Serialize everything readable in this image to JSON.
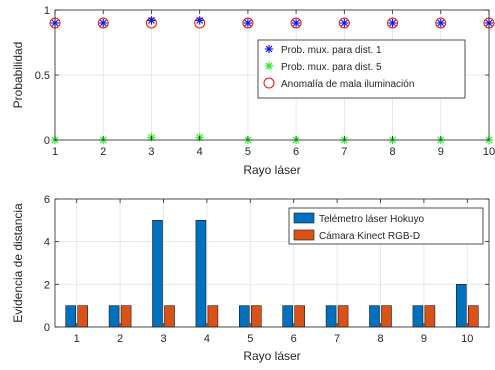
{
  "chart_data": [
    {
      "type": "scatter",
      "xlabel": "Rayo láser",
      "ylabel": "Probabilidad",
      "xlim": [
        1,
        10
      ],
      "ylim": [
        0,
        1
      ],
      "x": [
        1,
        2,
        3,
        4,
        5,
        6,
        7,
        8,
        9,
        10
      ],
      "xticks": [
        "1",
        "2",
        "3",
        "4",
        "5",
        "6",
        "7",
        "8",
        "9",
        "10"
      ],
      "yticks": [
        "0",
        "0.5",
        "1"
      ],
      "yticks_values": [
        0,
        0.5,
        1
      ],
      "grid": true,
      "legend_position": "inside right",
      "series": [
        {
          "name": "Prob. mux. para dist. 1",
          "marker": "asterisk",
          "color": "#1010ee",
          "values": [
            0.9,
            0.9,
            0.92,
            0.92,
            0.9,
            0.9,
            0.9,
            0.9,
            0.9,
            0.9
          ]
        },
        {
          "name": "Prob. mux. para dist. 5",
          "marker": "asterisk",
          "color": "#22ee22",
          "values": [
            0.0,
            0.0,
            0.02,
            0.02,
            0.0,
            0.0,
            0.0,
            0.0,
            0.0,
            0.0
          ]
        },
        {
          "name": "Anomalía de mala iluminación",
          "marker": "circle",
          "color": "#ee1111",
          "values": [
            0.9,
            0.9,
            0.9,
            0.9,
            0.9,
            0.9,
            0.9,
            0.9,
            0.9,
            0.9
          ]
        }
      ]
    },
    {
      "type": "bar",
      "xlabel": "Rayo láser",
      "ylabel": "Evidencia de distancia",
      "ylim": [
        0,
        6
      ],
      "categories": [
        "1",
        "2",
        "3",
        "4",
        "5",
        "6",
        "7",
        "8",
        "9",
        "10"
      ],
      "yticks": [
        "0",
        "2",
        "4",
        "6"
      ],
      "yticks_values": [
        0,
        2,
        4,
        6
      ],
      "grid": true,
      "legend_position": "inside top-right",
      "series": [
        {
          "name": "Telémetro láser Hokuyo",
          "color": "#0072bd",
          "values": [
            1,
            1,
            5,
            5,
            1,
            1,
            1,
            1,
            1,
            2
          ]
        },
        {
          "name": "Cámara Kinect RGB-D",
          "color": "#d95319",
          "values": [
            1,
            1,
            1,
            1,
            1,
            1,
            1,
            1,
            1,
            1
          ]
        }
      ]
    }
  ]
}
